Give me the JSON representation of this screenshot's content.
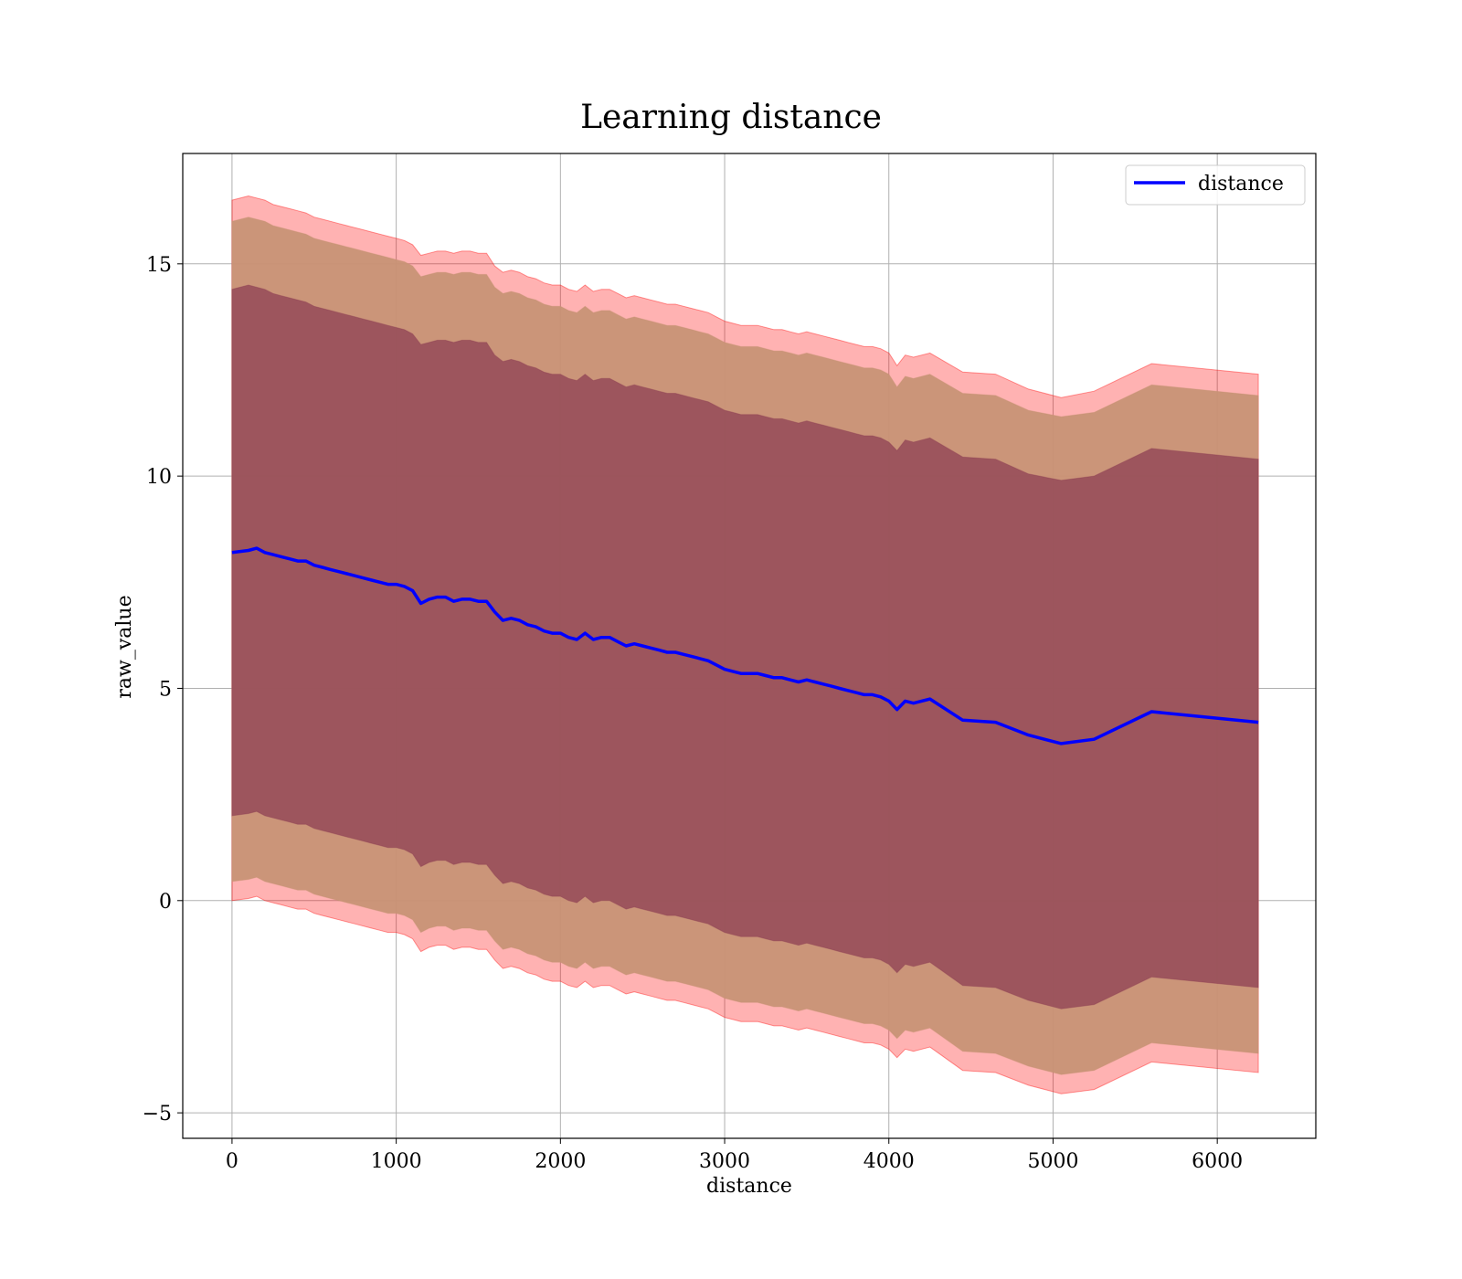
{
  "chart_data": {
    "type": "line",
    "title": "Learning distance",
    "xlabel": "distance",
    "ylabel": "raw_value",
    "xlim": [
      -300,
      6600
    ],
    "ylim": [
      -5.6,
      17.6
    ],
    "xticks": [
      0,
      1000,
      2000,
      3000,
      4000,
      5000,
      6000
    ],
    "xtick_labels": [
      "0",
      "1000",
      "2000",
      "3000",
      "4000",
      "5000",
      "6000"
    ],
    "yticks": [
      -5,
      0,
      5,
      10,
      15
    ],
    "ytick_labels": [
      "−5",
      "0",
      "5",
      "10",
      "15"
    ],
    "grid": true,
    "legend": {
      "position": "upper right",
      "entries": [
        "distance"
      ]
    },
    "colors": {
      "line": "#0000ff",
      "band": "#ff0000",
      "inner_band": "#8b3d52",
      "mid_band": "#c89376"
    },
    "series": [
      {
        "name": "distance",
        "x": [
          0,
          100,
          150,
          200,
          250,
          300,
          350,
          400,
          450,
          500,
          550,
          600,
          650,
          700,
          750,
          800,
          850,
          900,
          950,
          1000,
          1050,
          1100,
          1150,
          1200,
          1250,
          1300,
          1350,
          1400,
          1450,
          1500,
          1550,
          1600,
          1650,
          1700,
          1750,
          1800,
          1850,
          1900,
          1950,
          2000,
          2050,
          2100,
          2150,
          2200,
          2250,
          2300,
          2350,
          2400,
          2450,
          2500,
          2550,
          2600,
          2650,
          2700,
          2750,
          2800,
          2850,
          2900,
          2950,
          3000,
          3050,
          3100,
          3150,
          3200,
          3250,
          3300,
          3350,
          3400,
          3450,
          3500,
          3550,
          3600,
          3650,
          3700,
          3750,
          3800,
          3850,
          3900,
          3950,
          4000,
          4050,
          4100,
          4150,
          4250,
          4450,
          4650,
          4850,
          5050,
          5250,
          5600,
          6250
        ],
        "y": [
          8.2,
          8.25,
          8.3,
          8.2,
          8.15,
          8.1,
          8.05,
          8.0,
          8.0,
          7.9,
          7.85,
          7.8,
          7.75,
          7.7,
          7.65,
          7.6,
          7.55,
          7.5,
          7.45,
          7.45,
          7.4,
          7.3,
          7.0,
          7.1,
          7.15,
          7.15,
          7.05,
          7.1,
          7.1,
          7.05,
          7.05,
          6.8,
          6.6,
          6.65,
          6.6,
          6.5,
          6.45,
          6.35,
          6.3,
          6.3,
          6.2,
          6.15,
          6.3,
          6.15,
          6.2,
          6.2,
          6.1,
          6.0,
          6.05,
          6.0,
          5.95,
          5.9,
          5.85,
          5.85,
          5.8,
          5.75,
          5.7,
          5.65,
          5.55,
          5.45,
          5.4,
          5.35,
          5.35,
          5.35,
          5.3,
          5.25,
          5.25,
          5.2,
          5.15,
          5.2,
          5.15,
          5.1,
          5.05,
          5.0,
          4.95,
          4.9,
          4.85,
          4.85,
          4.8,
          4.7,
          4.5,
          4.7,
          4.65,
          4.75,
          4.25,
          4.2,
          3.9,
          3.7,
          3.8,
          4.45,
          4.2
        ],
        "bands": [
          {
            "name": "outer",
            "upper": [
              16.5,
              16.6,
              16.55,
              16.5,
              16.4,
              16.35,
              16.3,
              16.25,
              16.2,
              16.1,
              16.05,
              16.0,
              15.95,
              15.9,
              15.85,
              15.8,
              15.75,
              15.7,
              15.65,
              15.6,
              15.55,
              15.45,
              15.2,
              15.25,
              15.3,
              15.3,
              15.25,
              15.3,
              15.3,
              15.25,
              15.25,
              14.95,
              14.8,
              14.85,
              14.8,
              14.7,
              14.65,
              14.55,
              14.5,
              14.5,
              14.4,
              14.35,
              14.5,
              14.35,
              14.4,
              14.4,
              14.3,
              14.2,
              14.25,
              14.2,
              14.15,
              14.1,
              14.05,
              14.05,
              14.0,
              13.95,
              13.9,
              13.85,
              13.75,
              13.65,
              13.6,
              13.55,
              13.55,
              13.55,
              13.5,
              13.45,
              13.45,
              13.4,
              13.35,
              13.4,
              13.35,
              13.3,
              13.25,
              13.2,
              13.15,
              13.1,
              13.05,
              13.05,
              13.0,
              12.9,
              12.6,
              12.85,
              12.8,
              12.9,
              12.45,
              12.4,
              12.05,
              11.85,
              12.0,
              12.65,
              12.4
            ],
            "lower": [
              0.0,
              0.05,
              0.1,
              0.0,
              -0.05,
              -0.1,
              -0.15,
              -0.2,
              -0.2,
              -0.3,
              -0.35,
              -0.4,
              -0.45,
              -0.5,
              -0.55,
              -0.6,
              -0.65,
              -0.7,
              -0.75,
              -0.75,
              -0.8,
              -0.9,
              -1.2,
              -1.1,
              -1.05,
              -1.05,
              -1.15,
              -1.1,
              -1.1,
              -1.15,
              -1.15,
              -1.4,
              -1.6,
              -1.55,
              -1.6,
              -1.7,
              -1.75,
              -1.85,
              -1.9,
              -1.9,
              -2.0,
              -2.05,
              -1.9,
              -2.05,
              -2.0,
              -2.0,
              -2.1,
              -2.2,
              -2.15,
              -2.2,
              -2.25,
              -2.3,
              -2.35,
              -2.35,
              -2.4,
              -2.45,
              -2.5,
              -2.55,
              -2.65,
              -2.75,
              -2.8,
              -2.85,
              -2.85,
              -2.85,
              -2.9,
              -2.95,
              -2.95,
              -3.0,
              -3.05,
              -3.0,
              -3.05,
              -3.1,
              -3.15,
              -3.2,
              -3.25,
              -3.3,
              -3.35,
              -3.35,
              -3.4,
              -3.5,
              -3.7,
              -3.5,
              -3.55,
              -3.45,
              -4.0,
              -4.05,
              -4.35,
              -4.55,
              -4.45,
              -3.8,
              -4.05
            ]
          },
          {
            "name": "middle",
            "upper": [
              16.0,
              16.1,
              16.05,
              16.0,
              15.9,
              15.85,
              15.8,
              15.75,
              15.7,
              15.6,
              15.55,
              15.5,
              15.45,
              15.4,
              15.35,
              15.3,
              15.25,
              15.2,
              15.15,
              15.1,
              15.05,
              14.95,
              14.7,
              14.75,
              14.8,
              14.8,
              14.75,
              14.8,
              14.8,
              14.75,
              14.75,
              14.45,
              14.3,
              14.35,
              14.3,
              14.2,
              14.15,
              14.05,
              14.0,
              14.0,
              13.9,
              13.85,
              14.0,
              13.85,
              13.9,
              13.9,
              13.8,
              13.7,
              13.75,
              13.7,
              13.65,
              13.6,
              13.55,
              13.55,
              13.5,
              13.45,
              13.4,
              13.35,
              13.25,
              13.15,
              13.1,
              13.05,
              13.05,
              13.05,
              13.0,
              12.95,
              12.95,
              12.9,
              12.85,
              12.9,
              12.85,
              12.8,
              12.75,
              12.7,
              12.65,
              12.6,
              12.55,
              12.55,
              12.5,
              12.4,
              12.1,
              12.35,
              12.3,
              12.4,
              11.95,
              11.9,
              11.55,
              11.4,
              11.5,
              12.15,
              11.9
            ],
            "lower": [
              0.45,
              0.5,
              0.55,
              0.45,
              0.4,
              0.35,
              0.3,
              0.25,
              0.25,
              0.15,
              0.1,
              0.05,
              0.0,
              -0.05,
              -0.1,
              -0.15,
              -0.2,
              -0.25,
              -0.3,
              -0.3,
              -0.35,
              -0.45,
              -0.75,
              -0.65,
              -0.6,
              -0.6,
              -0.7,
              -0.65,
              -0.65,
              -0.7,
              -0.7,
              -0.95,
              -1.15,
              -1.1,
              -1.15,
              -1.25,
              -1.3,
              -1.4,
              -1.45,
              -1.45,
              -1.55,
              -1.6,
              -1.45,
              -1.6,
              -1.55,
              -1.55,
              -1.65,
              -1.75,
              -1.7,
              -1.75,
              -1.8,
              -1.85,
              -1.9,
              -1.9,
              -1.95,
              -2.0,
              -2.05,
              -2.1,
              -2.2,
              -2.3,
              -2.35,
              -2.4,
              -2.4,
              -2.4,
              -2.45,
              -2.5,
              -2.5,
              -2.55,
              -2.6,
              -2.55,
              -2.6,
              -2.65,
              -2.7,
              -2.75,
              -2.8,
              -2.85,
              -2.9,
              -2.9,
              -2.95,
              -3.05,
              -3.25,
              -3.05,
              -3.1,
              -3.0,
              -3.55,
              -3.6,
              -3.9,
              -4.1,
              -4.0,
              -3.35,
              -3.6
            ]
          },
          {
            "name": "inner",
            "upper": [
              14.4,
              14.5,
              14.45,
              14.4,
              14.3,
              14.25,
              14.2,
              14.15,
              14.1,
              14.0,
              13.95,
              13.9,
              13.85,
              13.8,
              13.75,
              13.7,
              13.65,
              13.6,
              13.55,
              13.5,
              13.45,
              13.35,
              13.1,
              13.15,
              13.2,
              13.2,
              13.15,
              13.2,
              13.2,
              13.15,
              13.15,
              12.85,
              12.7,
              12.75,
              12.7,
              12.6,
              12.55,
              12.45,
              12.4,
              12.4,
              12.3,
              12.25,
              12.4,
              12.25,
              12.3,
              12.3,
              12.2,
              12.1,
              12.15,
              12.1,
              12.05,
              12.0,
              11.95,
              11.95,
              11.9,
              11.85,
              11.8,
              11.75,
              11.65,
              11.55,
              11.5,
              11.45,
              11.45,
              11.45,
              11.4,
              11.35,
              11.35,
              11.3,
              11.25,
              11.3,
              11.25,
              11.2,
              11.15,
              11.1,
              11.05,
              11.0,
              10.95,
              10.95,
              10.9,
              10.8,
              10.6,
              10.85,
              10.8,
              10.9,
              10.45,
              10.4,
              10.05,
              9.9,
              10.0,
              10.65,
              10.4
            ],
            "lower": [
              2.0,
              2.05,
              2.1,
              2.0,
              1.95,
              1.9,
              1.85,
              1.8,
              1.8,
              1.7,
              1.65,
              1.6,
              1.55,
              1.5,
              1.45,
              1.4,
              1.35,
              1.3,
              1.25,
              1.25,
              1.2,
              1.1,
              0.8,
              0.9,
              0.95,
              0.95,
              0.85,
              0.9,
              0.9,
              0.85,
              0.85,
              0.6,
              0.4,
              0.45,
              0.4,
              0.3,
              0.25,
              0.15,
              0.1,
              0.1,
              0.0,
              -0.05,
              0.1,
              -0.05,
              0.0,
              0.0,
              -0.1,
              -0.2,
              -0.15,
              -0.2,
              -0.25,
              -0.3,
              -0.35,
              -0.35,
              -0.4,
              -0.45,
              -0.5,
              -0.55,
              -0.65,
              -0.75,
              -0.8,
              -0.85,
              -0.85,
              -0.85,
              -0.9,
              -0.95,
              -0.95,
              -1.0,
              -1.05,
              -1.0,
              -1.05,
              -1.1,
              -1.15,
              -1.2,
              -1.25,
              -1.3,
              -1.35,
              -1.35,
              -1.4,
              -1.5,
              -1.7,
              -1.5,
              -1.55,
              -1.45,
              -2.0,
              -2.05,
              -2.35,
              -2.55,
              -2.45,
              -1.8,
              -2.05
            ]
          }
        ]
      }
    ]
  }
}
